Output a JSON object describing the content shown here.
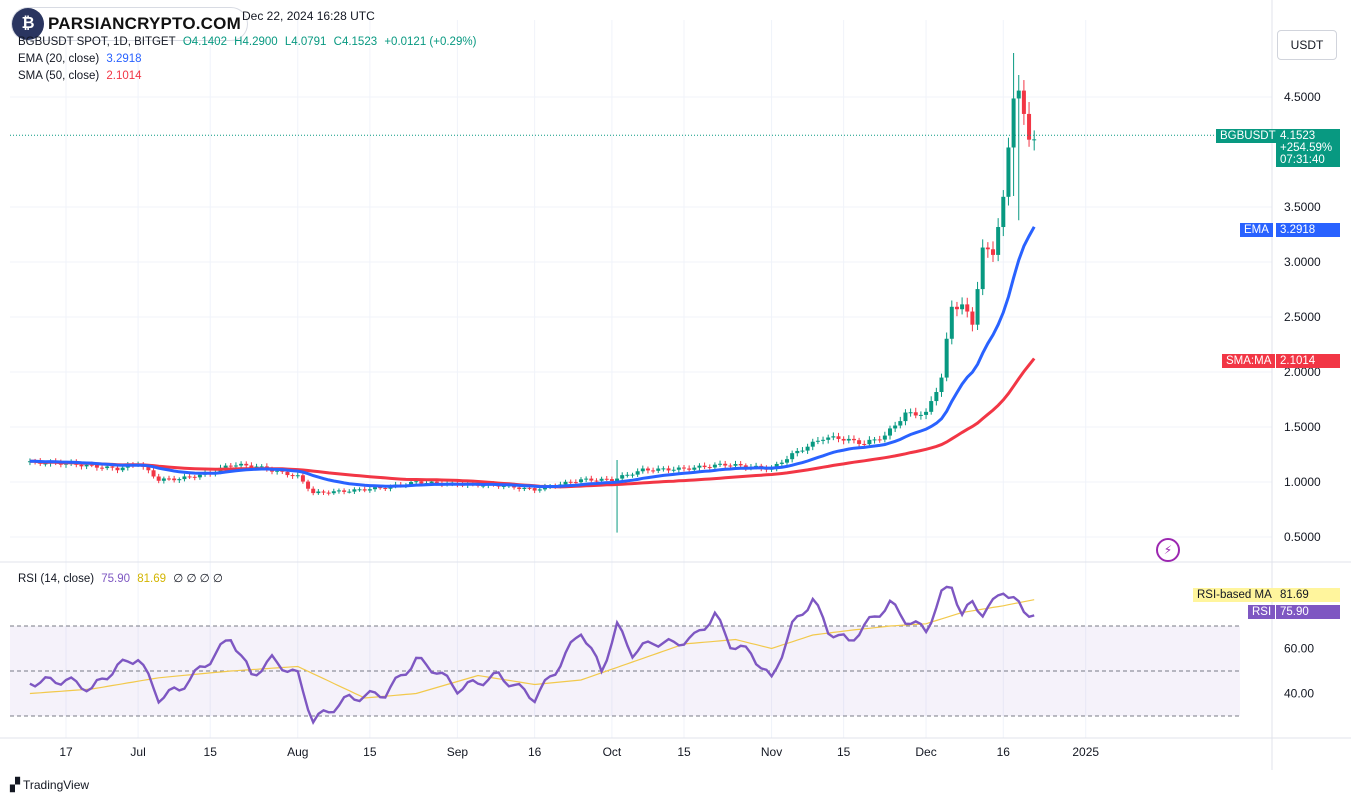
{
  "brand": {
    "name": "PARSIANCRYPTO.COM",
    "icon": "bitcoin-fist-logo"
  },
  "header": {
    "date": "Dec 22, 2024 16:28 UTC"
  },
  "legend": {
    "symbol": "BGBUSDT SPOT, 1D, BITGET",
    "open": "O4.1402",
    "high": "H4.2900",
    "low": "L4.0791",
    "close": "C4.1523",
    "change": "+0.0121 (+0.29%)",
    "ema_label": "EMA (20, close)",
    "ema_value": "3.2918",
    "sma_label": "SMA (50, close)",
    "sma_value": "2.1014",
    "rsi_label": "RSI (14, close)",
    "rsi_value": "75.90",
    "rsi_ma_value": "81.69",
    "rsi_extras": "∅ ∅ ∅ ∅"
  },
  "axis": {
    "currency": "USDT"
  },
  "price_tag": {
    "symbol": "BGBUSDT",
    "value": "4.1523",
    "change": "+254.59%",
    "countdown": "07:31:40"
  },
  "ema_tag": {
    "label": "EMA",
    "value": "3.2918"
  },
  "sma_tag": {
    "label": "SMA:MA",
    "value": "2.1014"
  },
  "rsi_ma_tag": {
    "label": "RSI-based MA",
    "value": "81.69"
  },
  "rsi_tag": {
    "label": "RSI",
    "value": "75.90"
  },
  "footer": {
    "brand": "TradingView"
  },
  "colors": {
    "up": "#089981",
    "down": "#f23645",
    "ema": "#2962ff",
    "sma": "#f23645",
    "rsi": "#7e57c2",
    "rsi_ma": "#f2c94c"
  },
  "chart_data": [
    {
      "type": "candlestick",
      "ylim": [
        0.35,
        5.0
      ],
      "yticks": [
        "4.5000",
        "3.5000",
        "3.0000",
        "2.5000",
        "2.0000",
        "1.5000",
        "1.0000",
        "0.5000"
      ],
      "ytick_values": [
        4.5,
        3.5,
        3.0,
        2.5,
        2.0,
        1.5,
        1.0,
        0.5
      ],
      "xticks": [
        "17",
        "Jul",
        "15",
        "Aug",
        "15",
        "Sep",
        "16",
        "Oct",
        "15",
        "Nov",
        "15",
        "Dec",
        "16",
        "2025"
      ],
      "xtick_days": [
        0,
        14,
        28,
        45,
        59,
        76,
        91,
        106,
        120,
        137,
        151,
        167,
        182,
        198
      ],
      "start_day": -7,
      "end_day": 190,
      "close_keyframes": [
        [
          -7,
          1.18
        ],
        [
          0,
          1.17
        ],
        [
          10,
          1.12
        ],
        [
          14,
          1.17
        ],
        [
          18,
          1.02
        ],
        [
          22,
          1.03
        ],
        [
          28,
          1.08
        ],
        [
          32,
          1.16
        ],
        [
          37,
          1.14
        ],
        [
          45,
          1.05
        ],
        [
          48,
          0.9
        ],
        [
          55,
          0.92
        ],
        [
          62,
          0.95
        ],
        [
          68,
          1.0
        ],
        [
          76,
          0.98
        ],
        [
          84,
          0.97
        ],
        [
          91,
          0.93
        ],
        [
          100,
          1.02
        ],
        [
          106,
          1.02
        ],
        [
          112,
          1.11
        ],
        [
          120,
          1.12
        ],
        [
          128,
          1.16
        ],
        [
          137,
          1.12
        ],
        [
          141,
          1.25
        ],
        [
          147,
          1.4
        ],
        [
          150,
          1.4
        ],
        [
          155,
          1.35
        ],
        [
          159,
          1.42
        ],
        [
          163,
          1.62
        ],
        [
          167,
          1.62
        ],
        [
          170,
          1.95
        ],
        [
          172,
          2.6
        ],
        [
          174,
          2.6
        ],
        [
          176,
          2.45
        ],
        [
          178,
          3.1
        ],
        [
          180,
          3.1
        ],
        [
          182,
          3.55
        ],
        [
          184,
          4.54
        ],
        [
          185,
          4.54
        ],
        [
          186,
          4.3
        ],
        [
          187,
          4.14
        ],
        [
          188,
          4.1523
        ]
      ],
      "wick_overrides": [
        [
          107,
          1.2,
          0.54
        ],
        [
          184,
          4.9,
          3.6
        ],
        [
          185,
          4.7,
          3.38
        ]
      ],
      "ema": {
        "name": "EMA (20, close)",
        "last": 3.2918
      },
      "sma": {
        "name": "SMA (50, close)",
        "last": 2.1014
      },
      "last_price": 4.1523
    },
    {
      "type": "line",
      "name": "RSI (14, close)",
      "ylim": [
        25,
        90
      ],
      "yticks": [
        "60.00",
        "40.00"
      ],
      "ytick_values": [
        60,
        40
      ],
      "levels": [
        70,
        50,
        30
      ],
      "rsi_keyframes": [
        [
          -7,
          45
        ],
        [
          0,
          46
        ],
        [
          5,
          42
        ],
        [
          10,
          52
        ],
        [
          14,
          56
        ],
        [
          18,
          38
        ],
        [
          22,
          42
        ],
        [
          28,
          55
        ],
        [
          32,
          65
        ],
        [
          36,
          48
        ],
        [
          40,
          55
        ],
        [
          45,
          48
        ],
        [
          48,
          28
        ],
        [
          55,
          38
        ],
        [
          62,
          40
        ],
        [
          68,
          55
        ],
        [
          72,
          50
        ],
        [
          76,
          42
        ],
        [
          84,
          48
        ],
        [
          91,
          38
        ],
        [
          95,
          50
        ],
        [
          100,
          68
        ],
        [
          104,
          50
        ],
        [
          107,
          70
        ],
        [
          110,
          58
        ],
        [
          114,
          63
        ],
        [
          118,
          62
        ],
        [
          122,
          65
        ],
        [
          126,
          75
        ],
        [
          129,
          62
        ],
        [
          133,
          58
        ],
        [
          137,
          46
        ],
        [
          141,
          70
        ],
        [
          145,
          82
        ],
        [
          148,
          68
        ],
        [
          152,
          63
        ],
        [
          156,
          72
        ],
        [
          160,
          80
        ],
        [
          163,
          73
        ],
        [
          167,
          68
        ],
        [
          170,
          84
        ],
        [
          172,
          88
        ],
        [
          174,
          75
        ],
        [
          176,
          80
        ],
        [
          178,
          76
        ],
        [
          180,
          80
        ],
        [
          182,
          86
        ],
        [
          184,
          82
        ],
        [
          186,
          76
        ],
        [
          188,
          75.9
        ]
      ],
      "rsi_ma_keyframes": [
        [
          -7,
          40
        ],
        [
          5,
          42
        ],
        [
          18,
          47
        ],
        [
          32,
          50
        ],
        [
          45,
          52
        ],
        [
          58,
          38
        ],
        [
          68,
          40
        ],
        [
          80,
          48
        ],
        [
          91,
          44
        ],
        [
          100,
          46
        ],
        [
          110,
          54
        ],
        [
          120,
          62
        ],
        [
          130,
          64
        ],
        [
          137,
          60
        ],
        [
          145,
          66
        ],
        [
          152,
          68
        ],
        [
          160,
          70
        ],
        [
          167,
          71
        ],
        [
          174,
          76
        ],
        [
          182,
          79
        ],
        [
          188,
          81.69
        ]
      ],
      "last_rsi": 75.9,
      "last_ma": 81.69
    }
  ]
}
